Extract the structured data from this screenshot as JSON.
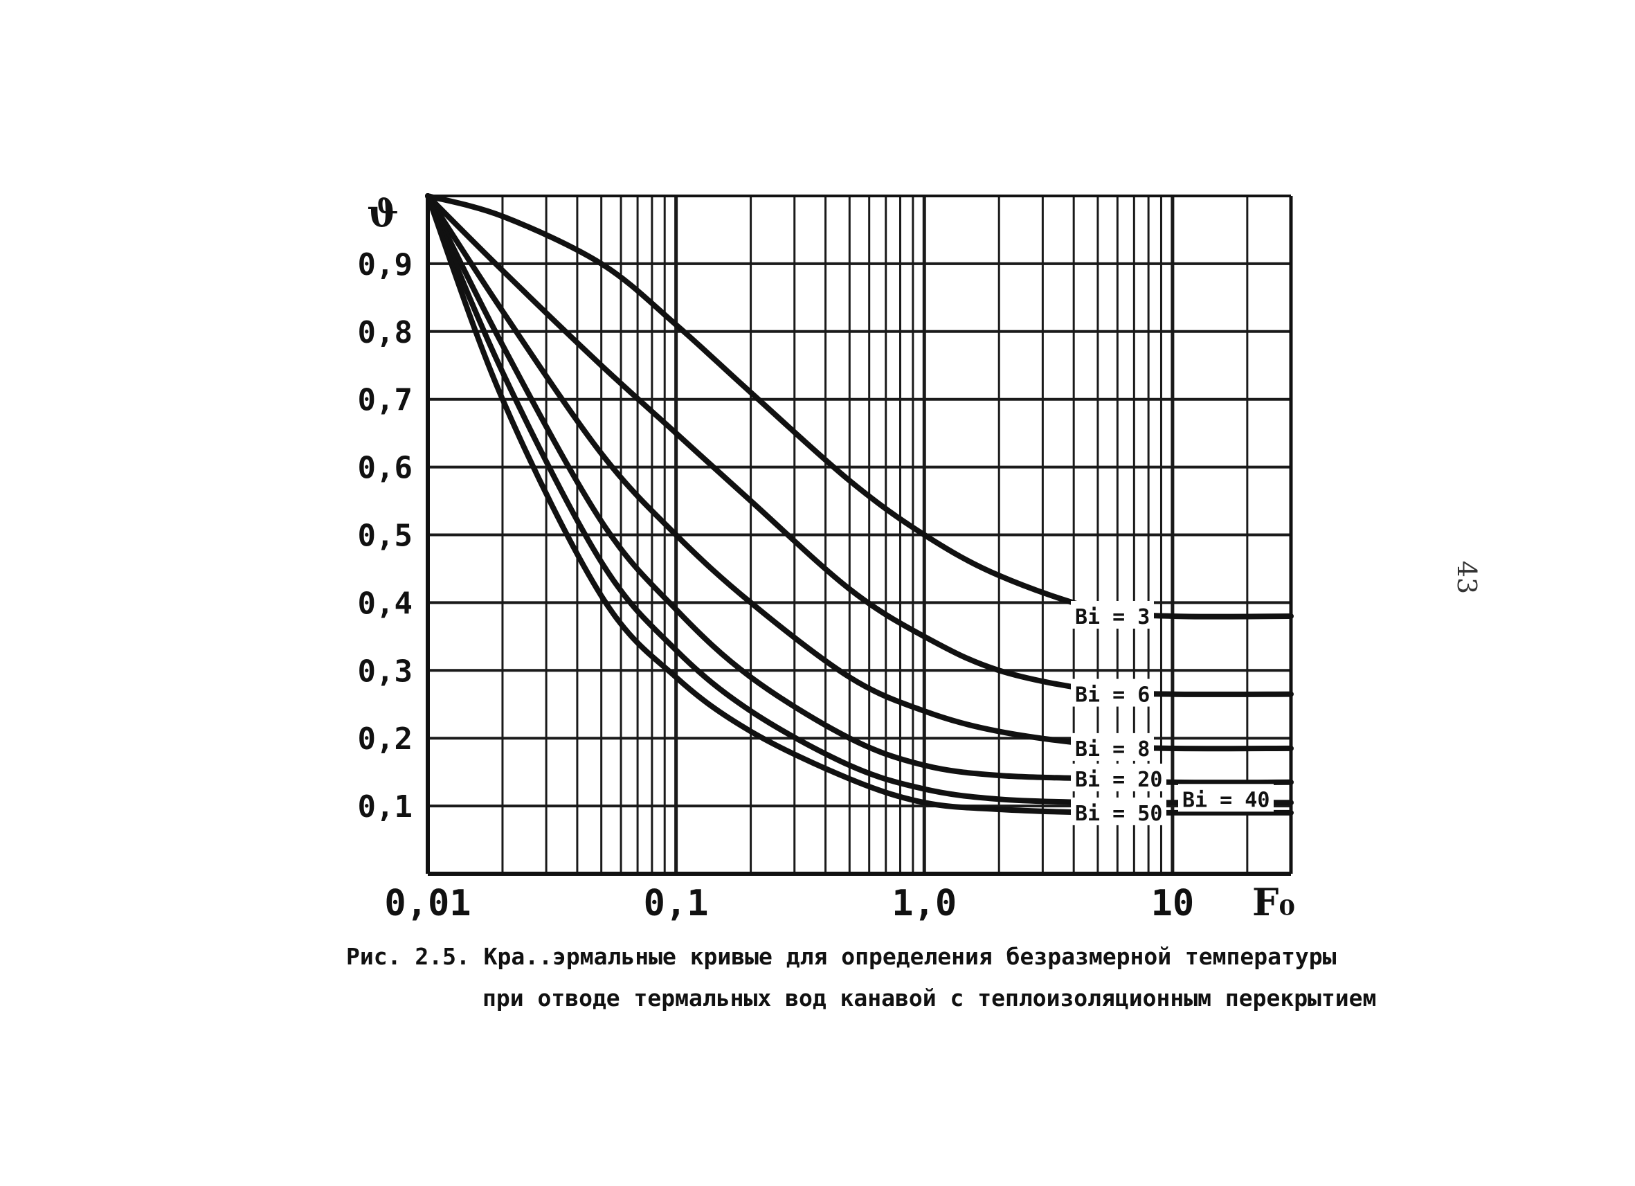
{
  "caption": {
    "line1": "Рис. 2.5. Кра..эрмальные кривые для определения безразмерной температуры",
    "line2": "при отводе термальных вод канавой с теплоизоляционным перекрытием"
  },
  "page_number": "43",
  "colors": {
    "ink": "#111111",
    "grid": "#1a1a1a",
    "paper": "#ffffff"
  },
  "chart_data": {
    "type": "line",
    "x_scale": "log",
    "xlim": [
      0.01,
      30
    ],
    "ylim": [
      0,
      1.0
    ],
    "grid": true,
    "xlabel": "F₀",
    "ylabel": "ϑ",
    "x_ticks": [
      "0,01",
      "0,1",
      "1,0",
      "10"
    ],
    "y_ticks": [
      "0,9",
      "0,8",
      "0,7",
      "0,6",
      "0,5",
      "0,4",
      "0,3",
      "0,2",
      "0,1"
    ],
    "series": [
      {
        "name": "Bi = 3",
        "x": [
          0.01,
          0.02,
          0.05,
          0.1,
          0.2,
          0.5,
          1.0,
          2.0,
          5.0,
          10,
          30
        ],
        "y": [
          1.0,
          0.97,
          0.9,
          0.81,
          0.71,
          0.58,
          0.5,
          0.44,
          0.39,
          0.38,
          0.38
        ]
      },
      {
        "name": "Bi = 6",
        "x": [
          0.01,
          0.02,
          0.05,
          0.1,
          0.2,
          0.5,
          1.0,
          2.0,
          5.0,
          10,
          30
        ],
        "y": [
          1.0,
          0.89,
          0.75,
          0.65,
          0.55,
          0.42,
          0.35,
          0.3,
          0.27,
          0.265,
          0.265
        ]
      },
      {
        "name": "Bi = 8",
        "x": [
          0.01,
          0.02,
          0.05,
          0.1,
          0.2,
          0.5,
          1.0,
          2.0,
          5.0,
          10,
          30
        ],
        "y": [
          1.0,
          0.83,
          0.62,
          0.5,
          0.4,
          0.29,
          0.24,
          0.21,
          0.19,
          0.185,
          0.185
        ]
      },
      {
        "name": "Bi = 20",
        "x": [
          0.01,
          0.02,
          0.05,
          0.1,
          0.2,
          0.5,
          1.0,
          2.0,
          5.0,
          10,
          30
        ],
        "y": [
          1.0,
          0.78,
          0.52,
          0.39,
          0.29,
          0.2,
          0.16,
          0.145,
          0.14,
          0.135,
          0.135
        ]
      },
      {
        "name": "Bi = 40",
        "x": [
          0.01,
          0.02,
          0.05,
          0.1,
          0.2,
          0.5,
          1.0,
          2.0,
          5.0,
          10,
          30
        ],
        "y": [
          1.0,
          0.74,
          0.46,
          0.33,
          0.24,
          0.16,
          0.125,
          0.11,
          0.105,
          0.105,
          0.105
        ]
      },
      {
        "name": "Bi = 50",
        "x": [
          0.01,
          0.02,
          0.05,
          0.1,
          0.2,
          0.5,
          1.0,
          2.0,
          5.0,
          10,
          30
        ],
        "y": [
          1.0,
          0.7,
          0.41,
          0.29,
          0.21,
          0.14,
          0.105,
          0.095,
          0.09,
          0.09,
          0.09
        ]
      }
    ]
  }
}
